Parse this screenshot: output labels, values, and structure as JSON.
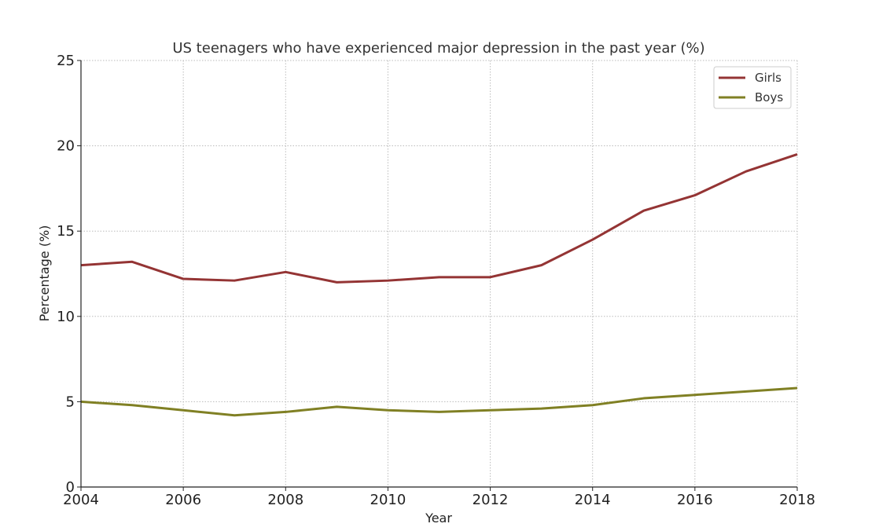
{
  "chart_data": {
    "type": "line",
    "title": "US teenagers who have experienced major depression in the past year (%)",
    "xlabel": "Year",
    "ylabel": "Percentage (%)",
    "x": [
      2004,
      2005,
      2006,
      2007,
      2008,
      2009,
      2010,
      2011,
      2012,
      2013,
      2014,
      2015,
      2016,
      2017,
      2018
    ],
    "xlim": [
      2004,
      2018
    ],
    "ylim": [
      0,
      25
    ],
    "xticks": [
      "2004",
      "2006",
      "2008",
      "2010",
      "2012",
      "2014",
      "2016",
      "2018"
    ],
    "yticks": [
      "0",
      "5",
      "10",
      "15",
      "20",
      "25"
    ],
    "grid": true,
    "legend_position": "top-right",
    "series": [
      {
        "name": "Girls",
        "color": "#943434",
        "values": [
          13.0,
          13.2,
          12.2,
          12.1,
          12.6,
          12.0,
          12.1,
          12.3,
          12.3,
          13.0,
          14.5,
          16.2,
          17.1,
          18.5,
          19.5
        ]
      },
      {
        "name": "Boys",
        "color": "#808024",
        "values": [
          5.0,
          4.8,
          4.5,
          4.2,
          4.4,
          4.7,
          4.5,
          4.4,
          4.5,
          4.6,
          4.8,
          5.2,
          5.4,
          5.6,
          5.8
        ]
      }
    ]
  }
}
